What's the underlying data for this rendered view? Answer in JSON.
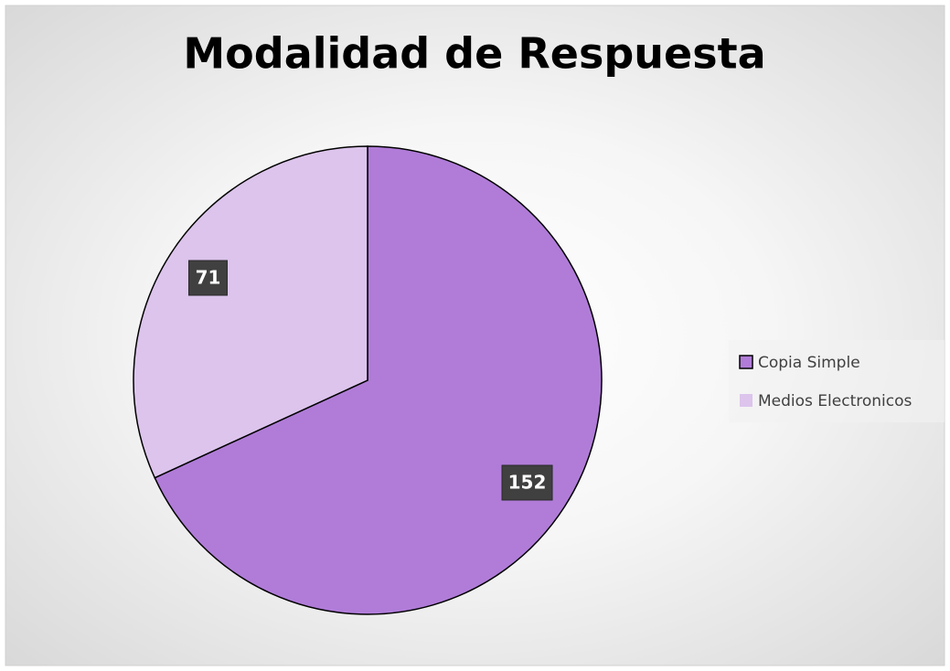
{
  "chart_data": {
    "type": "pie",
    "title": "Modalidad de Respuesta",
    "categories": [
      "Copia Simple",
      "Medios Electronicos"
    ],
    "values": [
      152,
      71
    ],
    "colors": [
      "#b07cd8",
      "#dcc4ec"
    ],
    "legend": "right"
  }
}
